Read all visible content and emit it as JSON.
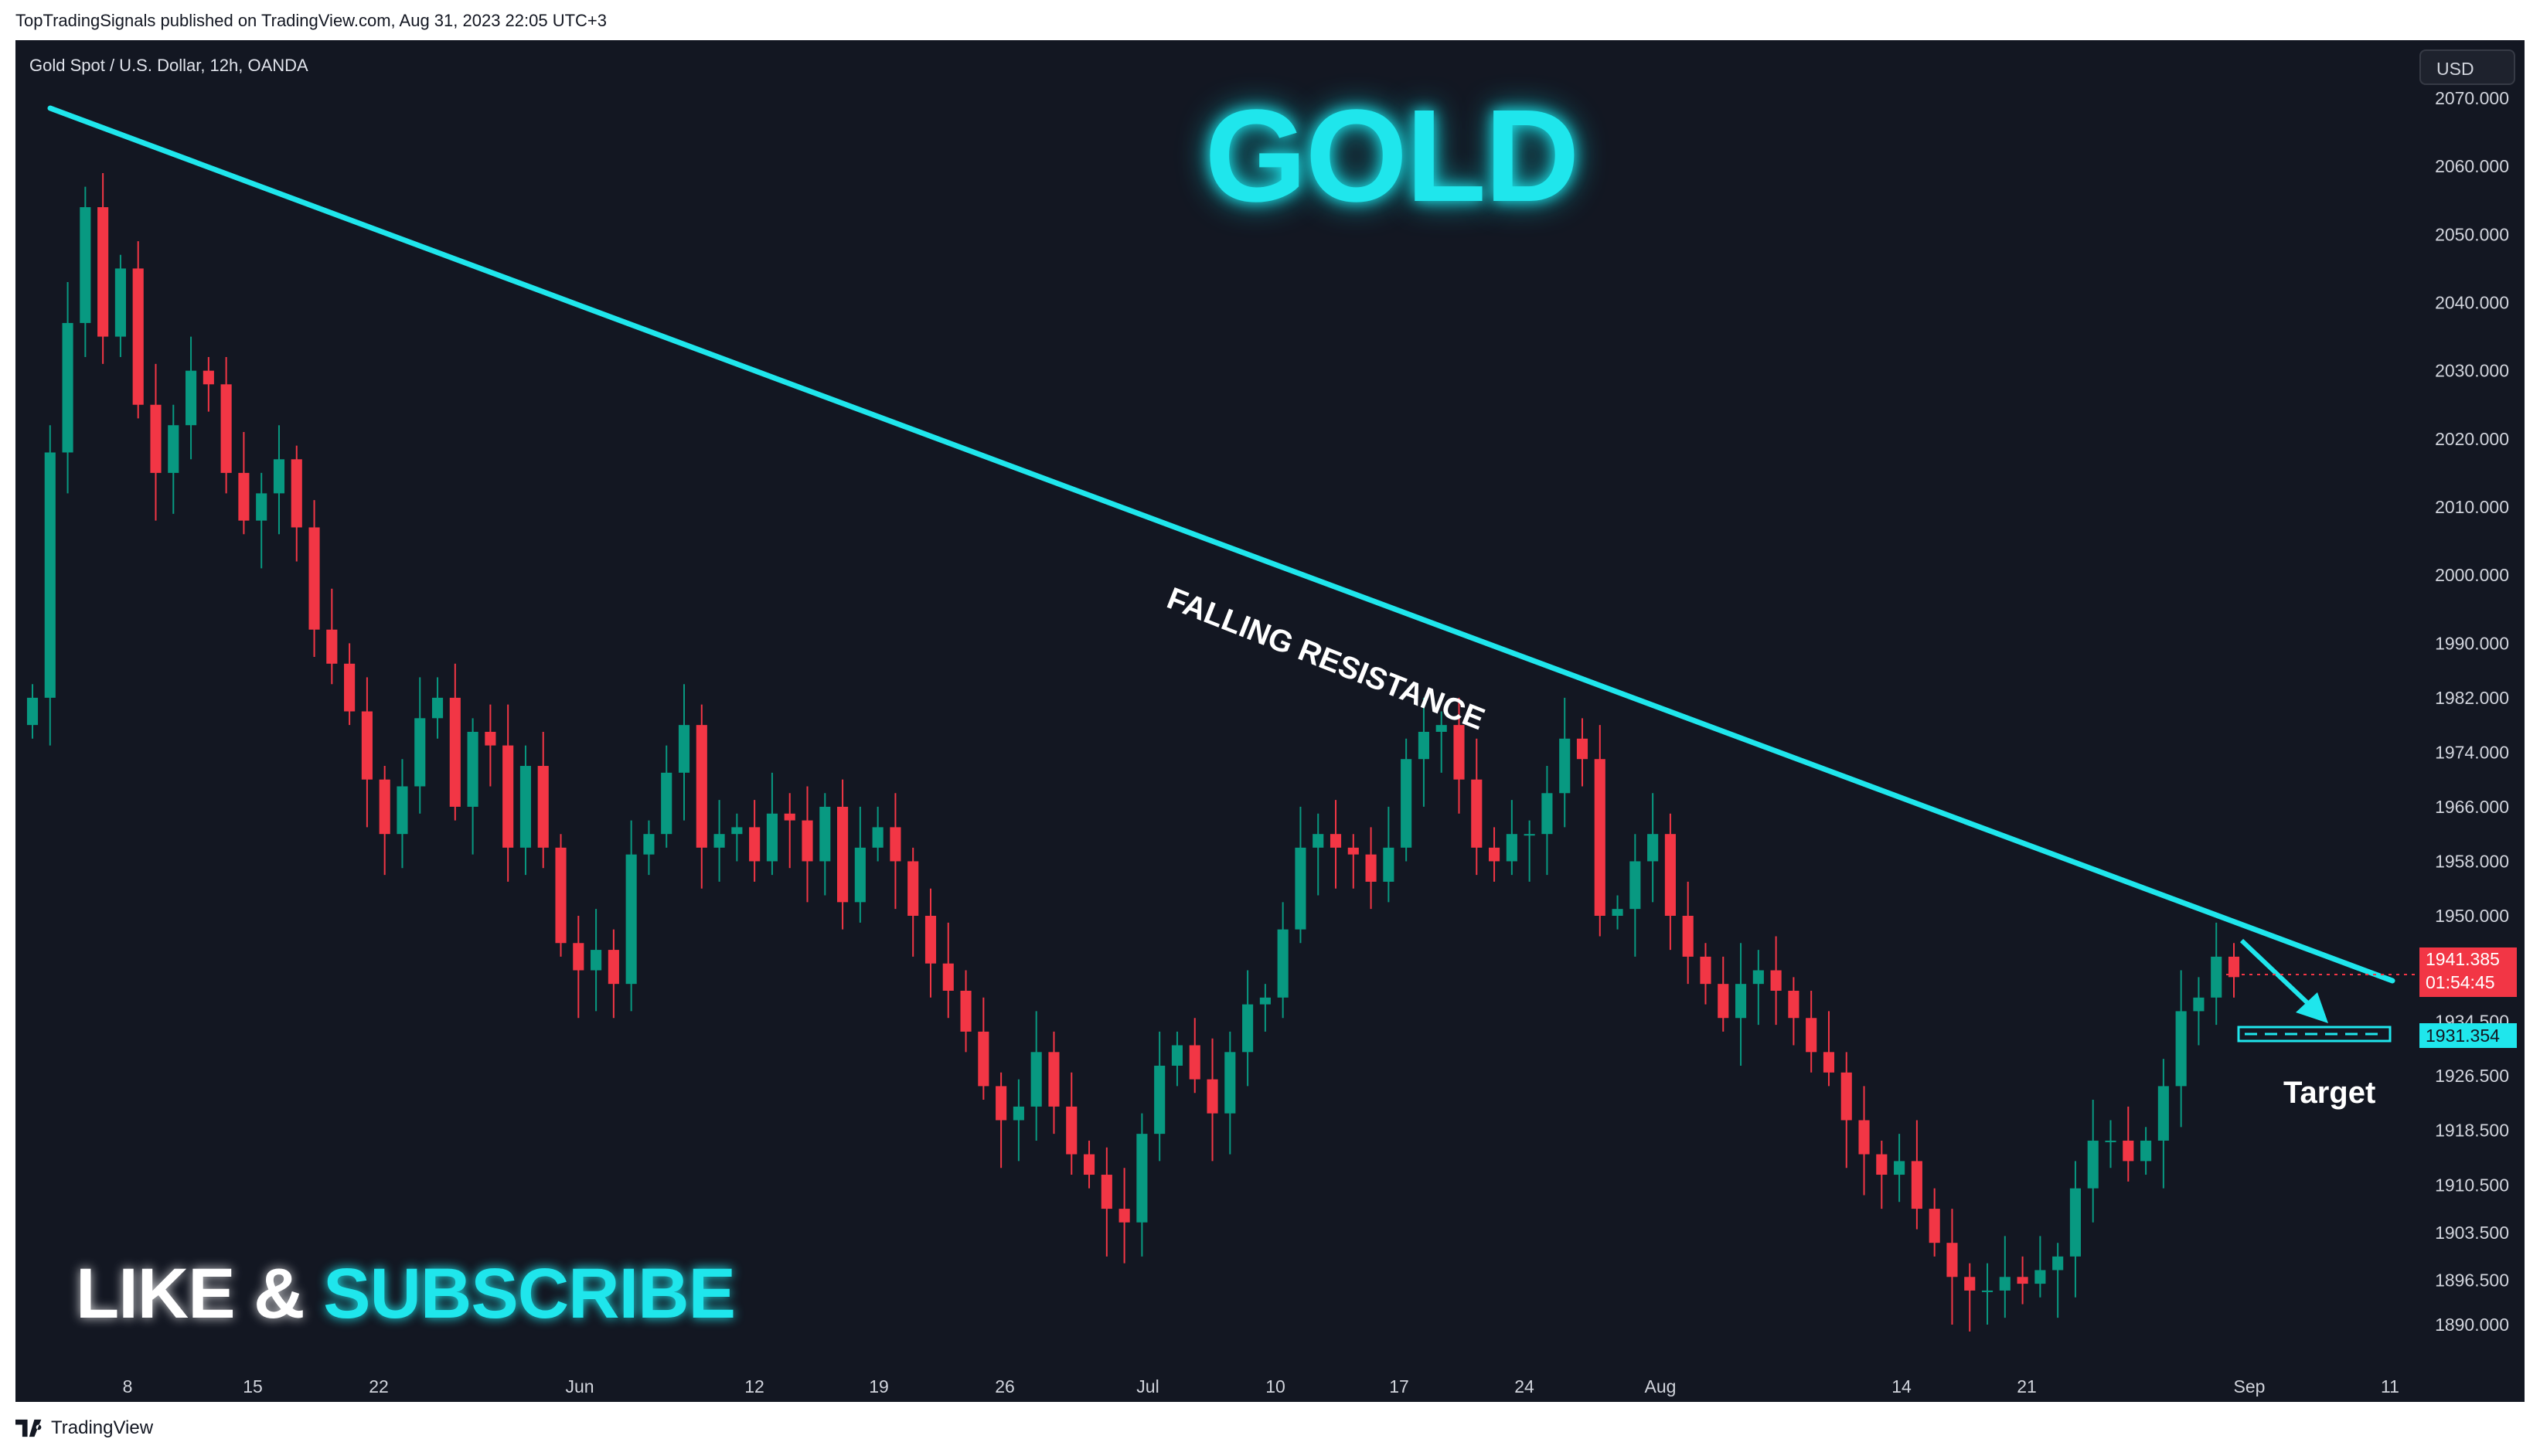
{
  "header": {
    "caption": "TopTradingSignals published on TradingView.com, Aug 31, 2023 22:05 UTC+3"
  },
  "chart": {
    "symbol": "Gold Spot / U.S. Dollar, 12h, OANDA",
    "currency": "USD",
    "headline": "GOLD",
    "cta_like": "LIKE &",
    "cta_subscribe": "SUBSCRIBE",
    "resistance_label": "FALLING RESISTANCE",
    "target_label": "Target",
    "last_price": "1941.385",
    "countdown": "01:54:45",
    "target_price": "1931.354"
  },
  "footer": {
    "brand": "TradingView",
    "logo": "tradingview-logo-icon"
  },
  "colors": {
    "background": "#131722",
    "up": "#089981",
    "down": "#f23645",
    "accent": "#1fe6ec",
    "text": "#d1d4dc"
  },
  "chart_data": {
    "type": "candlestick",
    "title": "Gold Spot / U.S. Dollar, 12h, OANDA",
    "y_axis_ticks": [
      "2070.000",
      "2060.000",
      "2050.000",
      "2040.000",
      "2030.000",
      "2020.000",
      "2010.000",
      "2000.000",
      "1990.000",
      "1982.000",
      "1974.000",
      "1966.000",
      "1958.000",
      "1950.000",
      "1934.500",
      "1926.500",
      "1918.500",
      "1910.500",
      "1903.500",
      "1896.500",
      "1890.000"
    ],
    "x_axis_ticks": [
      "8",
      "15",
      "22",
      "Jun",
      "12",
      "19",
      "26",
      "Jul",
      "10",
      "17",
      "24",
      "Aug",
      "14",
      "21",
      "Sep",
      "11"
    ],
    "ylim": [
      1888,
      2072
    ],
    "series": [
      {
        "name": "price",
        "values": [
          1982,
          2018,
          2037,
          2054,
          2035,
          2045,
          2025,
          2015,
          2022,
          2030,
          2028,
          2015,
          2008,
          2012,
          2017,
          2007,
          1992,
          1987,
          1980,
          1970,
          1962,
          1969,
          1979,
          1982,
          1966,
          1977,
          1975,
          1960,
          1972,
          1960,
          1946,
          1942,
          1945,
          1940,
          1959,
          1962,
          1971,
          1978,
          1960,
          1962,
          1963,
          1958,
          1965,
          1964,
          1958,
          1966,
          1952,
          1960,
          1963,
          1958,
          1950,
          1943,
          1939,
          1933,
          1925,
          1920,
          1922,
          1930,
          1922,
          1915,
          1912,
          1907,
          1905,
          1918,
          1928,
          1931,
          1926,
          1921,
          1930,
          1937,
          1938,
          1948,
          1960,
          1962,
          1960,
          1959,
          1955,
          1960,
          1973,
          1977,
          1978,
          1970,
          1960,
          1958,
          1962,
          1962,
          1968,
          1976,
          1973,
          1950,
          1951,
          1958,
          1962,
          1950,
          1944,
          1940,
          1935,
          1940,
          1942,
          1939,
          1935,
          1930,
          1927,
          1920,
          1915,
          1912,
          1914,
          1907,
          1902,
          1897,
          1895,
          1895,
          1897,
          1896,
          1898,
          1900,
          1910,
          1917,
          1917,
          1914,
          1917,
          1925,
          1936,
          1938,
          1944,
          1941
        ]
      }
    ]
  }
}
